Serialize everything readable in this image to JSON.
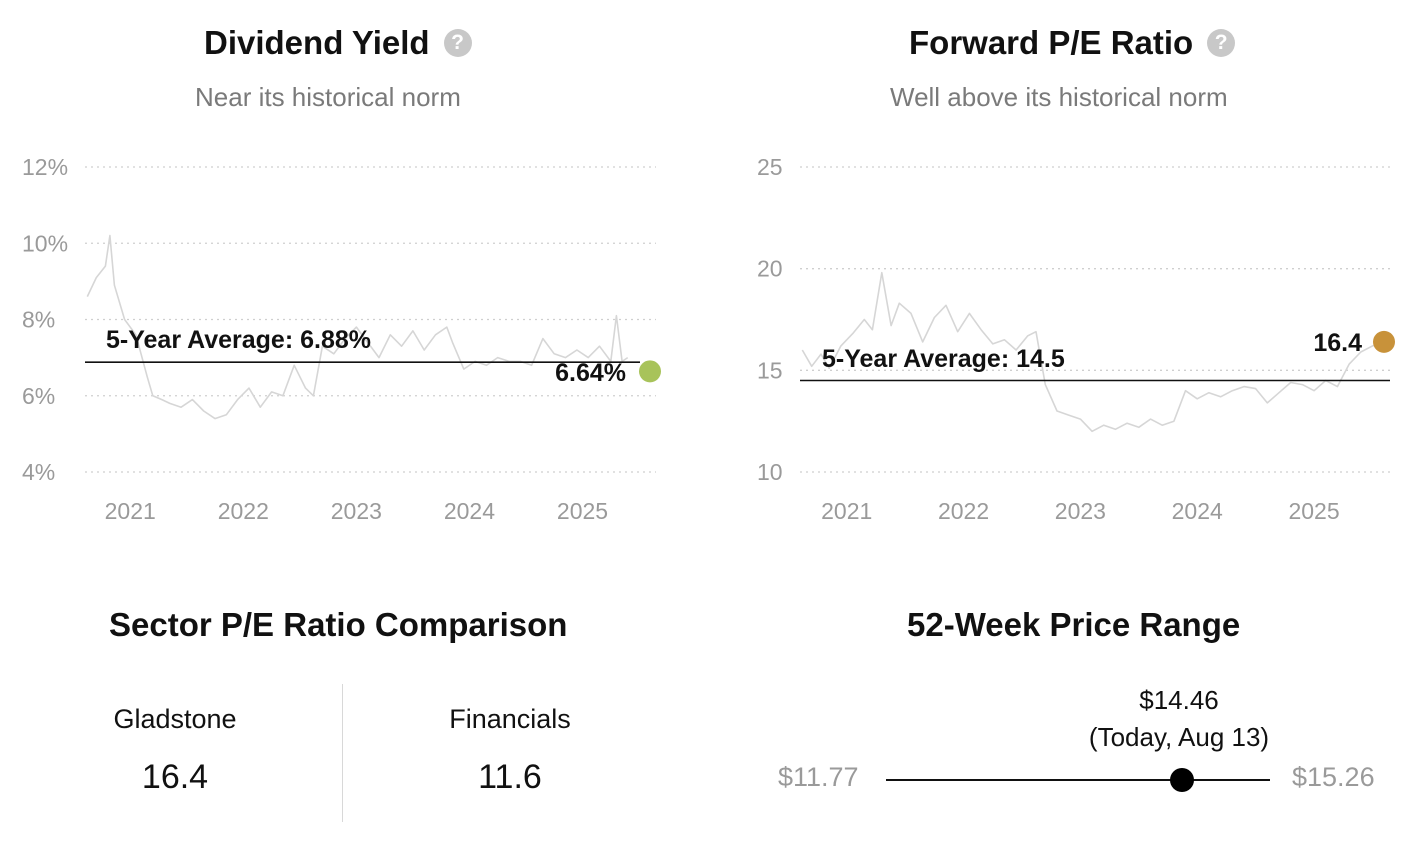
{
  "dividend_panel": {
    "title": "Dividend Yield",
    "subtitle": "Near its historical norm",
    "help_icon": "question-circle-icon",
    "average_label": "5-Year Average: 6.88%",
    "current_label": "6.64%",
    "current_color": "#a8c35a"
  },
  "pe_panel": {
    "title": "Forward P/E Ratio",
    "subtitle": "Well above its historical norm",
    "help_icon": "question-circle-icon",
    "average_label": "5-Year Average: 14.5",
    "current_label": "16.4",
    "current_color": "#c8923a"
  },
  "sector": {
    "title": "Sector P/E Ratio Comparison",
    "items": [
      {
        "label": "Gladstone",
        "value": "16.4"
      },
      {
        "label": "Financials",
        "value": "11.6"
      }
    ]
  },
  "range": {
    "title": "52-Week Price Range",
    "low": "$11.77",
    "high": "$15.26",
    "current": "$14.46",
    "current_note": "(Today, Aug 13)",
    "low_value": 11.77,
    "high_value": 15.26,
    "current_value": 14.46
  },
  "chart_data": [
    {
      "type": "line",
      "title": "Dividend Yield",
      "subtitle": "Near its historical norm",
      "x_tick_labels": [
        "2021",
        "2022",
        "2023",
        "2024",
        "2025"
      ],
      "x_ticks": [
        2021,
        2022,
        2023,
        2024,
        2025
      ],
      "y_tick_labels": [
        "12%",
        "10%",
        "8%",
        "6%",
        "4%"
      ],
      "y_ticks": [
        12,
        10,
        8,
        6,
        4
      ],
      "xlim": [
        2020.6,
        2025.65
      ],
      "ylim": [
        4,
        12
      ],
      "average": 6.88,
      "average_label": "5-Year Average: 6.88%",
      "current": 6.64,
      "current_label": "6.64%",
      "series": [
        {
          "x": [
            2020.62,
            2020.7,
            2020.78,
            2020.82,
            2020.86,
            2020.95,
            2021.05,
            2021.15,
            2021.2,
            2021.28,
            2021.35,
            2021.45,
            2021.55,
            2021.65,
            2021.75,
            2021.85,
            2021.95,
            2022.05,
            2022.15,
            2022.25,
            2022.35,
            2022.45,
            2022.55,
            2022.62,
            2022.7,
            2022.8,
            2022.9,
            2023.0,
            2023.1,
            2023.2,
            2023.3,
            2023.4,
            2023.5,
            2023.6,
            2023.7,
            2023.8,
            2023.85,
            2023.95,
            2024.05,
            2024.15,
            2024.25,
            2024.35,
            2024.45,
            2024.55,
            2024.65,
            2024.75,
            2024.85,
            2024.95,
            2025.05,
            2025.15,
            2025.25,
            2025.3,
            2025.35,
            2025.4
          ],
          "y": [
            8.6,
            9.1,
            9.4,
            10.2,
            8.9,
            8.0,
            7.6,
            6.5,
            6.0,
            5.9,
            5.8,
            5.7,
            5.9,
            5.6,
            5.4,
            5.5,
            5.9,
            6.2,
            5.7,
            6.1,
            6.0,
            6.8,
            6.2,
            6.0,
            7.3,
            7.1,
            7.5,
            7.8,
            7.4,
            7.0,
            7.6,
            7.3,
            7.7,
            7.2,
            7.6,
            7.8,
            7.4,
            6.7,
            6.9,
            6.8,
            7.0,
            6.9,
            6.9,
            6.8,
            7.5,
            7.1,
            7.0,
            7.2,
            7.0,
            7.3,
            6.9,
            8.1,
            6.9,
            7.0
          ]
        }
      ],
      "grid": true
    },
    {
      "type": "line",
      "title": "Forward P/E Ratio",
      "subtitle": "Well above its historical norm",
      "x_tick_labels": [
        "2021",
        "2022",
        "2023",
        "2024",
        "2025"
      ],
      "x_ticks": [
        2021,
        2022,
        2023,
        2024,
        2025
      ],
      "y_tick_labels": [
        "25",
        "20",
        "15",
        "10"
      ],
      "y_ticks": [
        25,
        20,
        15,
        10
      ],
      "xlim": [
        2020.6,
        2025.65
      ],
      "ylim": [
        10,
        25
      ],
      "average": 14.5,
      "average_label": "5-Year Average: 14.5",
      "current": 16.4,
      "current_label": "16.4",
      "series": [
        {
          "x": [
            2020.62,
            2020.7,
            2020.78,
            2020.85,
            2020.95,
            2021.05,
            2021.15,
            2021.22,
            2021.3,
            2021.38,
            2021.45,
            2021.55,
            2021.65,
            2021.75,
            2021.85,
            2021.95,
            2022.05,
            2022.15,
            2022.25,
            2022.35,
            2022.45,
            2022.55,
            2022.62,
            2022.7,
            2022.8,
            2022.9,
            2023.0,
            2023.1,
            2023.2,
            2023.3,
            2023.4,
            2023.5,
            2023.6,
            2023.7,
            2023.8,
            2023.9,
            2024.0,
            2024.1,
            2024.2,
            2024.3,
            2024.4,
            2024.5,
            2024.6,
            2024.7,
            2024.8,
            2024.9,
            2025.0,
            2025.1,
            2025.2,
            2025.3,
            2025.4,
            2025.5,
            2025.6
          ],
          "y": [
            16.0,
            15.2,
            15.8,
            15.1,
            16.2,
            16.8,
            17.5,
            17.0,
            19.8,
            17.2,
            18.3,
            17.8,
            16.4,
            17.6,
            18.2,
            16.9,
            17.8,
            17.0,
            16.3,
            16.5,
            16.0,
            16.7,
            16.9,
            14.3,
            13.0,
            12.8,
            12.6,
            12.0,
            12.3,
            12.1,
            12.4,
            12.2,
            12.6,
            12.3,
            12.5,
            14.0,
            13.6,
            13.9,
            13.7,
            14.0,
            14.2,
            14.1,
            13.4,
            13.9,
            14.4,
            14.3,
            14.0,
            14.5,
            14.2,
            15.3,
            15.9,
            16.2,
            16.4
          ]
        }
      ],
      "grid": true
    }
  ]
}
